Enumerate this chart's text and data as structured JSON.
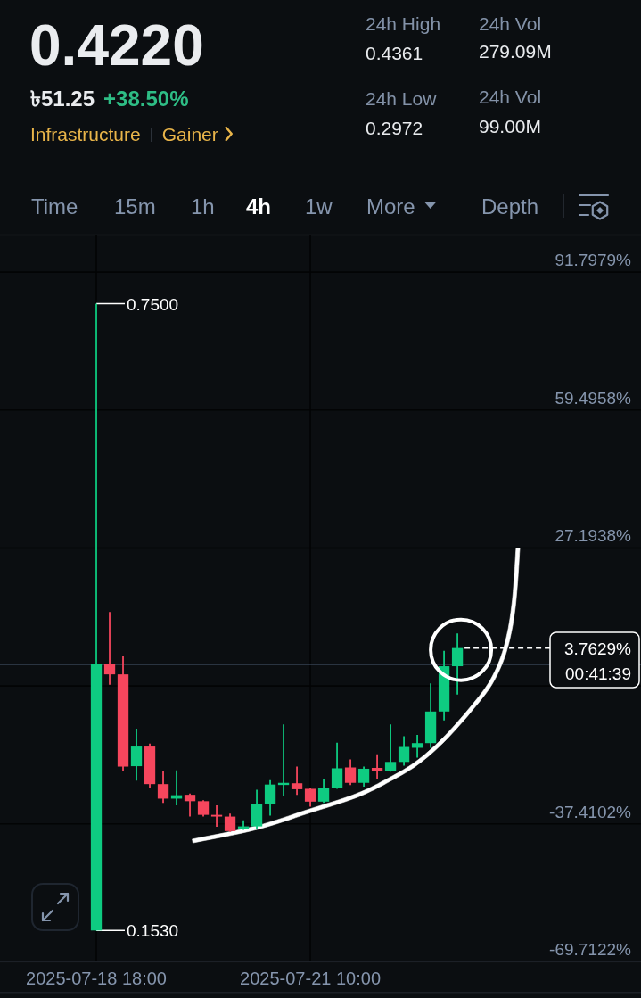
{
  "chart_data": {
    "type": "candlestick",
    "title": "0.4220",
    "x": [
      "2025-07-18T18:00",
      "2025-07-18T22:00",
      "2025-07-19T02:00",
      "2025-07-19T06:00",
      "2025-07-19T10:00",
      "2025-07-19T14:00",
      "2025-07-19T18:00",
      "2025-07-19T22:00",
      "2025-07-20T02:00",
      "2025-07-20T06:00",
      "2025-07-20T10:00",
      "2025-07-20T14:00",
      "2025-07-20T18:00",
      "2025-07-20T22:00",
      "2025-07-21T02:00",
      "2025-07-21T06:00",
      "2025-07-21T10:00",
      "2025-07-21T14:00",
      "2025-07-21T18:00",
      "2025-07-21T22:00",
      "2025-07-22T02:00",
      "2025-07-22T06:00",
      "2025-07-22T10:00",
      "2025-07-22T14:00",
      "2025-07-22T18:00",
      "2025-07-22T22:00",
      "2025-07-23T02:00",
      "2025-07-23T06:00"
    ],
    "ohlc": [
      [
        -62.38,
        84.41,
        -62.38,
        0
      ],
      [
        0,
        12.2,
        -4.8,
        -2.4
      ],
      [
        -2.4,
        1.8,
        -25.0,
        -24.0
      ],
      [
        -23.9,
        -15.1,
        -27.3,
        -19.3
      ],
      [
        -19.3,
        -18.6,
        -29.0,
        -28.1
      ],
      [
        -28.1,
        -25.1,
        -32.5,
        -31.5
      ],
      [
        -31.5,
        -24.9,
        -33.1,
        -30.7
      ],
      [
        -30.6,
        -30.3,
        -35.7,
        -32.1
      ],
      [
        -32.1,
        -31.9,
        -35.7,
        -35.3
      ],
      [
        -35.3,
        -33.1,
        -38.1,
        -35.7
      ],
      [
        -35.7,
        -35.0,
        -39.3,
        -39.1
      ],
      [
        -38.5,
        -36.6,
        -38.8,
        -38.0
      ],
      [
        -38.0,
        -29.4,
        -38.5,
        -32.7
      ],
      [
        -32.7,
        -27.2,
        -35.5,
        -28.2
      ],
      [
        -28.3,
        -14.1,
        -30.8,
        -27.8
      ],
      [
        -27.9,
        -24.0,
        -30.6,
        -29.3
      ],
      [
        -29.2,
        -29.0,
        -33.4,
        -32.2
      ],
      [
        -32.2,
        -26.9,
        -32.5,
        -29.0
      ],
      [
        -29.0,
        -18.4,
        -29.2,
        -24.4
      ],
      [
        -24.2,
        -22.3,
        -28.3,
        -27.8
      ],
      [
        -27.8,
        -24.0,
        -28.7,
        -24.5
      ],
      [
        -24.3,
        -21.1,
        -26.9,
        -25.0
      ],
      [
        -25.0,
        -14.1,
        -25.2,
        -22.9
      ],
      [
        -22.9,
        -16.9,
        -23.8,
        -19.4
      ],
      [
        -19.6,
        -16.6,
        -21.9,
        -18.5
      ],
      [
        -18.5,
        -4.5,
        -19.6,
        -11.1
      ],
      [
        -11.1,
        3.1,
        -13.2,
        -0.5
      ],
      [
        -0.5,
        7.2,
        -7.1,
        3.7629
      ]
    ],
    "colors": [
      "#0ecb81",
      "#f6465d",
      "#f6465d",
      "#0ecb81",
      "#f6465d",
      "#f6465d",
      "#0ecb81",
      "#f6465d",
      "#f6465d",
      "#f6465d",
      "#f6465d",
      "#0ecb81",
      "#0ecb81",
      "#0ecb81",
      "#0ecb81",
      "#f6465d",
      "#f6465d",
      "#0ecb81",
      "#0ecb81",
      "#f6465d",
      "#0ecb81",
      "#f6465d",
      "#0ecb81",
      "#0ecb81",
      "#0ecb81",
      "#0ecb81",
      "#0ecb81",
      "#0ecb81"
    ],
    "xlim": [
      "2025-07-17T13:12",
      "2025-07-25T12:54"
    ],
    "xticks": [
      {
        "value": "2025-07-18T18:00",
        "label": "2025-07-18 18:00"
      },
      {
        "value": "2025-07-21T10:00",
        "label": "2025-07-21 10:00"
      }
    ],
    "ylim": [
      -69.7122,
      100.5
    ],
    "yticks": [
      {
        "value": 91.7979,
        "label": "91.7979%"
      },
      {
        "value": 59.4958,
        "label": "59.4958%"
      },
      {
        "value": 27.1938,
        "label": "27.1938%"
      },
      {
        "value": -5.1082,
        "label": null
      },
      {
        "value": -37.4102,
        "label": "-37.4102%"
      },
      {
        "value": -69.7122,
        "label": "-69.7122%"
      }
    ],
    "grid": true,
    "ref_lines": [
      {
        "axis": "y",
        "value": 0,
        "color": "#4b5b72"
      },
      {
        "axis": "y",
        "value": 3.7629,
        "label": "3.7629%",
        "color": "#ffffff",
        "line_style": "dashed"
      }
    ],
    "annotations": [
      {
        "text": "0.7500",
        "x": "2025-07-18T18:00",
        "y": 84.41
      },
      {
        "text": "0.1530",
        "x": "2025-07-18T18:00",
        "y": -62.38
      },
      "00:41:39",
      "৳51.25",
      "+38.50%",
      "Infrastructure",
      "Gainer",
      "24h High",
      "0.4361",
      "24h Low",
      "0.2972",
      "24h Vol",
      "279.09M",
      "24h Vol",
      "99.00M",
      "Time",
      "15m",
      "1h",
      "4h",
      "1w",
      "More",
      "Depth"
    ]
  }
}
